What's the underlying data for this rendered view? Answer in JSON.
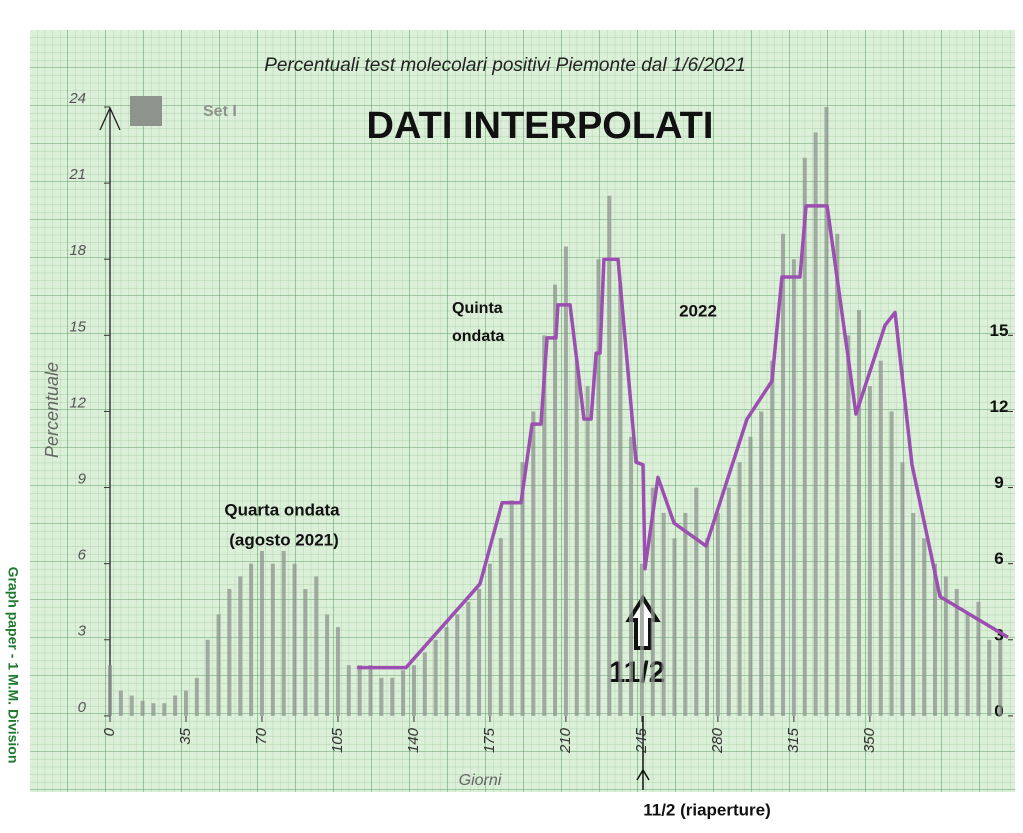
{
  "chart_data": {
    "type": "bar",
    "title": "Percentuali test molecolari positivi Piemonte dal 1/6/2021",
    "xlabel": "Giorni",
    "ylabel": "Percentuale",
    "xlim": [
      -7,
      415
    ],
    "ylim": [
      -3,
      24.5
    ],
    "y2lim": [
      -3,
      24.5
    ],
    "xticks": [
      0,
      35,
      70,
      105,
      140,
      175,
      210,
      245,
      280,
      315,
      350
    ],
    "yticks": [
      0,
      3,
      6,
      9,
      12,
      15,
      18,
      21,
      24
    ],
    "y2ticks": [
      0,
      3,
      6,
      9,
      12,
      15
    ],
    "series": [
      {
        "name": "Set I",
        "type": "bar",
        "color": "#8c948c",
        "x": [
          0,
          5,
          10,
          15,
          20,
          25,
          30,
          35,
          40,
          45,
          50,
          55,
          60,
          65,
          70,
          75,
          80,
          85,
          90,
          95,
          100,
          105,
          110,
          115,
          120,
          125,
          130,
          135,
          140,
          145,
          150,
          155,
          160,
          165,
          170,
          175,
          180,
          185,
          190,
          195,
          200,
          205,
          210,
          215,
          220,
          225,
          230,
          235,
          240,
          245,
          250,
          255,
          260,
          265,
          270,
          275,
          280,
          285,
          290,
          295,
          300,
          305,
          310,
          315,
          320,
          325,
          330,
          335,
          340,
          345,
          350,
          355,
          360,
          365,
          370,
          375,
          380,
          385,
          390,
          395,
          400,
          405,
          410
        ],
        "values": [
          2,
          1,
          0.8,
          0.6,
          0.5,
          0.5,
          0.8,
          1,
          1.5,
          3,
          4,
          5,
          5.5,
          6,
          6.5,
          6,
          6.5,
          6,
          5,
          5.5,
          4,
          3.5,
          2,
          2,
          2,
          1.5,
          1.5,
          1.8,
          2,
          2.5,
          3,
          3.5,
          4,
          4.5,
          5,
          6,
          7,
          8.5,
          10,
          12,
          15,
          17,
          18.5,
          14,
          13,
          18,
          20.5,
          17,
          11,
          6,
          9,
          8,
          7,
          8,
          9,
          7,
          8,
          9,
          10,
          11,
          12,
          14,
          19,
          18,
          22,
          23,
          24,
          19,
          15,
          16,
          13,
          14,
          12,
          10,
          8,
          7,
          6,
          5.5,
          5,
          4,
          4.5,
          3,
          3
        ]
      },
      {
        "name": "Dati interpolati",
        "type": "line",
        "color": "#9b4fb0",
        "x": [
          113.8,
          136.3,
          170.4,
          180.6,
          189.3,
          194.4,
          198.5,
          201.3,
          205.4,
          206.3,
          211.9,
          218.3,
          221.6,
          223.9,
          225.7,
          227.5,
          234.0,
          242.3,
          245.5,
          246.4,
          252.4,
          259.8,
          274.5,
          293.4,
          304.9,
          309.5,
          317.8,
          320.6,
          330.3,
          343.6,
          357.0,
          361.6,
          369.4,
          382.3,
          413.6
        ],
        "values": [
          1.9,
          1.9,
          5.2,
          8.4,
          8.4,
          11.5,
          11.5,
          14.9,
          14.9,
          16.2,
          16.2,
          11.7,
          11.7,
          14.3,
          14.3,
          18.0,
          18.0,
          10.0,
          9.9,
          5.8,
          9.4,
          7.6,
          6.7,
          11.7,
          13.2,
          17.3,
          17.3,
          20.1,
          20.1,
          11.9,
          15.4,
          15.9,
          9.9,
          4.7,
          3.1
        ]
      }
    ],
    "annotations": [
      "DATI INTERPOLATI",
      "Quarta ondata",
      "(agosto 2021)",
      "Quinta",
      "ondata",
      "2022",
      "11/2",
      "11/2 (riaperture)"
    ],
    "side_note": "Graph paper - 1 M.M. Division"
  }
}
